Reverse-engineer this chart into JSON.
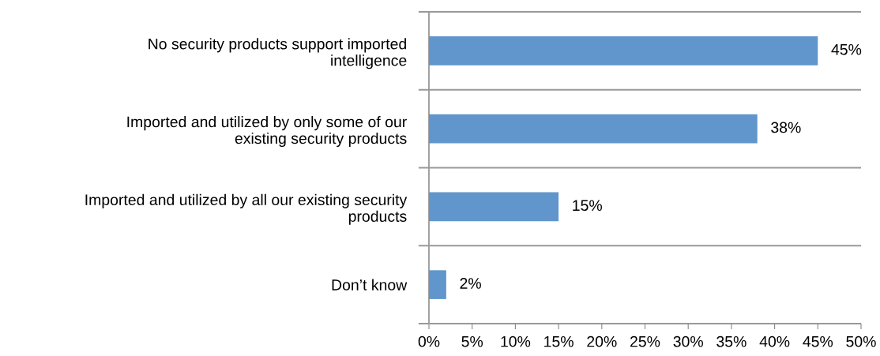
{
  "chart_data": {
    "type": "bar",
    "orientation": "horizontal",
    "categories": [
      "No security products support imported\nintelligence",
      "Imported and utilized by only some of our\nexisting security products",
      "Imported and utilized by all our existing security\nproducts",
      "Don’t know"
    ],
    "values": [
      45,
      38,
      15,
      2
    ],
    "value_labels": [
      "45%",
      "38%",
      "15%",
      "2%"
    ],
    "color": "#6096cb",
    "xlim": [
      0,
      50
    ],
    "xticks": [
      {
        "value": 0,
        "label": "0%"
      },
      {
        "value": 5,
        "label": "5%"
      },
      {
        "value": 10,
        "label": "10%"
      },
      {
        "value": 15,
        "label": "15%"
      },
      {
        "value": 20,
        "label": "20%"
      },
      {
        "value": 25,
        "label": "25%"
      },
      {
        "value": 30,
        "label": "30%"
      },
      {
        "value": 35,
        "label": "35%"
      },
      {
        "value": 40,
        "label": "40%"
      },
      {
        "value": 45,
        "label": "45%"
      },
      {
        "value": 50,
        "label": "50%"
      }
    ],
    "grid": "y"
  }
}
